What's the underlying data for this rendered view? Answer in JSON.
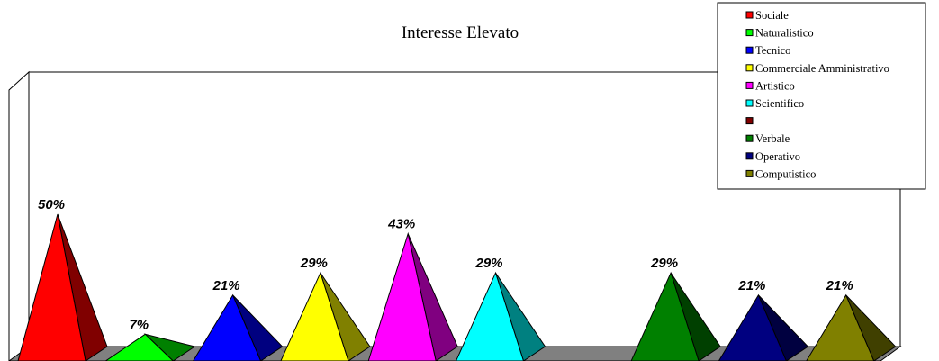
{
  "chart_data": {
    "type": "bar",
    "style": "3d-pyramid",
    "title": "Interesse Elevato",
    "xlabel": "",
    "ylabel": "",
    "ylim": [
      0,
      100
    ],
    "value_format": "percent",
    "categories": [
      "Sociale",
      "Naturalistico",
      "Tecnico",
      "Commerciale Amministrativo",
      "Artistico",
      "Scientifico",
      "",
      "Verbale",
      "Operativo",
      "Computistico"
    ],
    "values": [
      50,
      7,
      21,
      29,
      43,
      29,
      null,
      29,
      21,
      21
    ],
    "data_labels": [
      "50%",
      "7%",
      "21%",
      "29%",
      "43%",
      "29%",
      "",
      "29%",
      "21%",
      "21%"
    ],
    "colors": [
      "#ff0000",
      "#00ff00",
      "#0000ff",
      "#ffff00",
      "#ff00ff",
      "#00ffff",
      "#800000",
      "#008000",
      "#000080",
      "#808000"
    ],
    "side_colors": [
      "#800000",
      "#008000",
      "#000080",
      "#808000",
      "#800080",
      "#008080",
      "#400000",
      "#004000",
      "#000040",
      "#404000"
    ],
    "legend": {
      "position": "top-right",
      "entries": [
        "Sociale",
        "Naturalistico",
        "Tecnico",
        "Commerciale Amministrativo",
        "Artistico",
        "Scientifico",
        "",
        "Verbale",
        "Operativo",
        "Computistico"
      ]
    },
    "grid": false
  }
}
